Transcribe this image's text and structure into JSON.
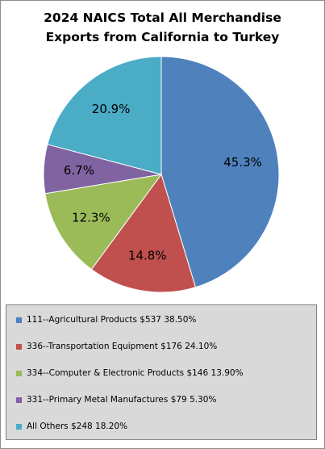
{
  "chart_data": {
    "type": "pie",
    "title": [
      "2024 NAICS Total All Merchandise",
      "Exports from California to Turkey"
    ],
    "slices": [
      {
        "label": "111--Agricultural Products $537 38.50%",
        "value": 45.3,
        "display": "45.3%",
        "color": "#4f81bd"
      },
      {
        "label": "336--Transportation Equipment $176 24.10%",
        "value": 14.8,
        "display": "14.8%",
        "color": "#c0504d"
      },
      {
        "label": "334--Computer & Electronic Products $146 13.90%",
        "value": 12.3,
        "display": "12.3%",
        "color": "#9bbb59"
      },
      {
        "label": "331--Primary Metal Manufactures $79 5.30%",
        "value": 6.7,
        "display": "6.7%",
        "color": "#8064a2"
      },
      {
        "label": "All Others $248 18.20%",
        "value": 20.9,
        "display": "20.9%",
        "color": "#4bacc6"
      }
    ],
    "legend_position": "bottom"
  }
}
